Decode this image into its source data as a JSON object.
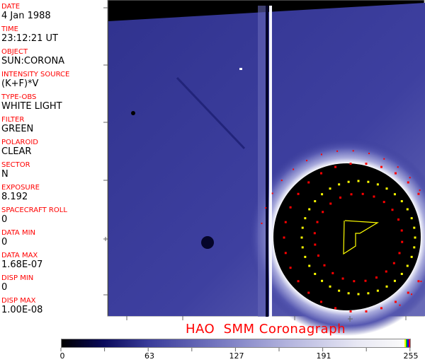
{
  "header_fields": [
    {
      "label": "DATE",
      "value": "4 Jan 1988"
    },
    {
      "label": "TIME",
      "value": "23:12:21 UT"
    },
    {
      "label": "OBJECT",
      "value": "SUN:CORONA"
    },
    {
      "label": "INTENSITY SOURCE",
      "value": "(K+F)*V"
    },
    {
      "label": "TYPE-OBS",
      "value": "WHITE LIGHT"
    },
    {
      "label": "FILTER",
      "value": "GREEN"
    },
    {
      "label": "POLAROID",
      "value": "CLEAR"
    },
    {
      "label": "SECTOR",
      "value": "N"
    },
    {
      "label": "EXPOSURE",
      "value": "8.192"
    },
    {
      "label": "SPACECRAFT ROLL",
      "value": "0"
    },
    {
      "label": "DATA MIN",
      "value": "0"
    },
    {
      "label": "DATA MAX",
      "value": "1.68E-07"
    },
    {
      "label": "DISP MIN",
      "value": "0"
    },
    {
      "label": "DISP MAX",
      "value": "1.00E-08"
    }
  ],
  "title": "HAO  SMM Coronagraph",
  "colorbar": {
    "tick_labels": [
      "0",
      "63",
      "127",
      "191",
      "255"
    ],
    "colormap": [
      "#000000",
      "#0a0a5a",
      "#3a3c9a",
      "#b3b4de",
      "#fafafa"
    ],
    "overlay_colors": [
      "#ffff00",
      "#00c000",
      "#0000ff",
      "#ff0000"
    ]
  },
  "colors": {
    "label": "#ff0000",
    "overlay_yellow": "#ffff00",
    "overlay_red": "#ff0000"
  }
}
